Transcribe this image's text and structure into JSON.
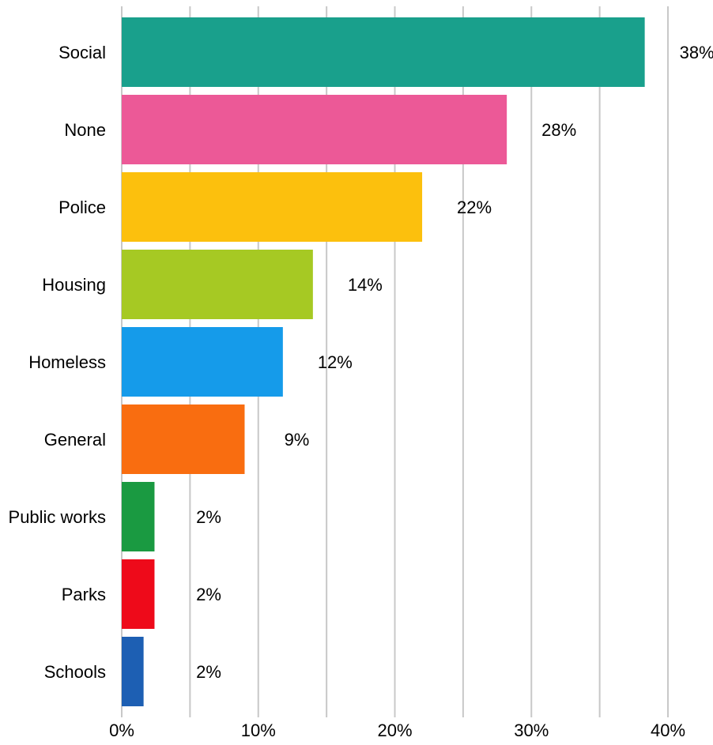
{
  "chart_data": {
    "type": "bar",
    "orientation": "horizontal",
    "title": "",
    "xlabel": "",
    "ylabel": "",
    "xlim": [
      0,
      40
    ],
    "x_ticks": [
      0,
      5,
      10,
      15,
      20,
      25,
      30,
      35,
      40
    ],
    "x_tick_labels": [
      "0%",
      "",
      "10%",
      "",
      "20%",
      "",
      "30%",
      "",
      "40%"
    ],
    "grid": true,
    "legend": "none",
    "categories": [
      "Social",
      "None",
      "Police",
      "Housing",
      "Homeless",
      "General",
      "Public works",
      "Parks",
      "Schools"
    ],
    "values": [
      38.3,
      28.2,
      22.0,
      14.0,
      11.8,
      9.0,
      2.4,
      2.4,
      1.6
    ],
    "value_labels": [
      "38%",
      "28%",
      "22%",
      "14%",
      "12%",
      "9%",
      "2%",
      "2%",
      "2%"
    ],
    "colors": [
      "#19a08c",
      "#ec5997",
      "#fcc00d",
      "#a6c923",
      "#159bea",
      "#f96d10",
      "#1a9a41",
      "#ee0a1a",
      "#1d5fb3"
    ],
    "gridline_color": "#c8c8c8"
  }
}
